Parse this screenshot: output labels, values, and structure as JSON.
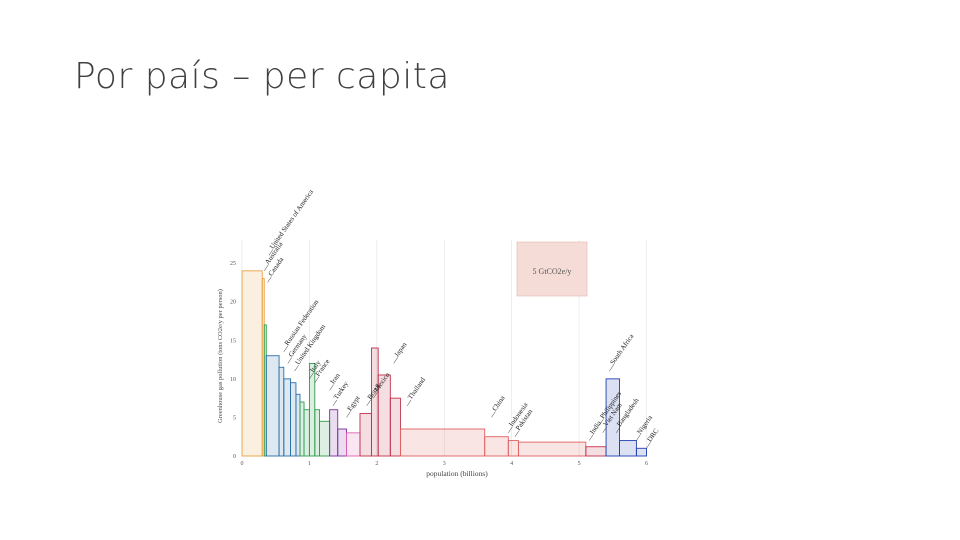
{
  "slide": {
    "title": "Por país – per capita"
  },
  "chart_data": {
    "type": "bar",
    "xlabel": "population (billions)",
    "ylabel": "Greenhouse gas pollution (tons CO2e/y per person)",
    "xlim": [
      0,
      6.2
    ],
    "ylim": [
      0,
      28
    ],
    "x_ticks": [
      "0",
      "1",
      "2",
      "3",
      "4",
      "5",
      "6"
    ],
    "y_ticks": [
      "0",
      "5",
      "10",
      "15",
      "20",
      "25"
    ],
    "legend_box": "5 GtCO2e/y",
    "grid": true,
    "countries": [
      {
        "x0": 0.0,
        "x1": 0.3,
        "value": 24.0,
        "color": "#e8a040",
        "label": ""
      },
      {
        "x0": 0.3,
        "x1": 0.33,
        "value": 23.0,
        "color": "#e8a040",
        "label": ""
      },
      {
        "x0": 0.33,
        "x1": 0.36,
        "value": 17.0,
        "color": "#2e9e4a",
        "label": ""
      },
      {
        "x0": 0.36,
        "x1": 0.55,
        "value": 13.0,
        "color": "#2a6fa8",
        "label": ""
      },
      {
        "x0": 0.55,
        "x1": 0.62,
        "value": 11.5,
        "color": "#2a6fa8",
        "label": ""
      },
      {
        "x0": 0.62,
        "x1": 0.72,
        "value": 10.0,
        "color": "#2a6fa8",
        "label": ""
      },
      {
        "x0": 0.72,
        "x1": 0.8,
        "value": 9.5,
        "color": "#2a6fa8",
        "label": ""
      },
      {
        "x0": 0.8,
        "x1": 0.86,
        "value": 8.0,
        "color": "#2a6fa8",
        "label": ""
      },
      {
        "x0": 0.86,
        "x1": 0.92,
        "value": 7.0,
        "color": "#2e9e4a",
        "label": ""
      },
      {
        "x0": 0.92,
        "x1": 1.0,
        "value": 6.0,
        "color": "#2e9e4a",
        "label": ""
      },
      {
        "x0": 1.0,
        "x1": 1.08,
        "value": 12.0,
        "color": "#2e9e4a",
        "label": ""
      },
      {
        "x0": 1.08,
        "x1": 1.15,
        "value": 6.0,
        "color": "#2e9e4a",
        "label": ""
      },
      {
        "x0": 1.15,
        "x1": 1.3,
        "value": 4.5,
        "color": "#2e9e4a",
        "label": ""
      },
      {
        "x0": 1.3,
        "x1": 1.42,
        "value": 6.0,
        "color": "#7a2e9e",
        "label": ""
      },
      {
        "x0": 1.42,
        "x1": 1.55,
        "value": 3.5,
        "color": "#7a2e9e",
        "label": ""
      },
      {
        "x0": 1.55,
        "x1": 1.75,
        "value": 3.0,
        "color": "#e060b0",
        "label": ""
      },
      {
        "x0": 1.75,
        "x1": 1.92,
        "value": 5.5,
        "color": "#c0304a",
        "label": ""
      },
      {
        "x0": 1.92,
        "x1": 2.02,
        "value": 14.0,
        "color": "#c0304a",
        "label": ""
      },
      {
        "x0": 2.02,
        "x1": 2.2,
        "value": 10.5,
        "color": "#c0304a",
        "label": ""
      },
      {
        "x0": 2.2,
        "x1": 2.35,
        "value": 7.5,
        "color": "#c0304a",
        "label": ""
      },
      {
        "x0": 2.35,
        "x1": 3.6,
        "value": 3.5,
        "color": "#e06060",
        "label": ""
      },
      {
        "x0": 3.6,
        "x1": 3.95,
        "value": 2.5,
        "color": "#e06060",
        "label": ""
      },
      {
        "x0": 3.95,
        "x1": 4.1,
        "value": 2.0,
        "color": "#e06060",
        "label": ""
      },
      {
        "x0": 4.1,
        "x1": 5.1,
        "value": 1.8,
        "color": "#e06060",
        "label": ""
      },
      {
        "x0": 5.1,
        "x1": 5.4,
        "value": 1.2,
        "color": "#c0304a",
        "label": ""
      },
      {
        "x0": 5.4,
        "x1": 5.6,
        "value": 10.0,
        "color": "#2040b0",
        "label": ""
      },
      {
        "x0": 5.6,
        "x1": 5.85,
        "value": 2.0,
        "color": "#2040b0",
        "label": ""
      },
      {
        "x0": 5.85,
        "x1": 6.0,
        "value": 1.0,
        "color": "#2040b0",
        "label": ""
      }
    ],
    "annotations": [
      {
        "text": "Australia",
        "x": 0.33,
        "y": 24.0
      },
      {
        "text": "United States of America",
        "x": 0.4,
        "y": 26.0
      },
      {
        "text": "Canada",
        "x": 0.38,
        "y": 22.5
      },
      {
        "text": "Russian Federation",
        "x": 0.62,
        "y": 13.5
      },
      {
        "text": "Germany",
        "x": 0.68,
        "y": 12.0
      },
      {
        "text": "United Kingdom",
        "x": 0.78,
        "y": 11.0
      },
      {
        "text": "Italy",
        "x": 1.0,
        "y": 10.0
      },
      {
        "text": "France",
        "x": 1.08,
        "y": 9.5
      },
      {
        "text": "Iran",
        "x": 1.3,
        "y": 8.5
      },
      {
        "text": "Turkey",
        "x": 1.35,
        "y": 6.5
      },
      {
        "text": "Egypt",
        "x": 1.55,
        "y": 5.0
      },
      {
        "text": "Brazil",
        "x": 1.85,
        "y": 6.5
      },
      {
        "text": "Mexico",
        "x": 1.95,
        "y": 7.5
      },
      {
        "text": "Japan",
        "x": 2.25,
        "y": 12.0
      },
      {
        "text": "Thailand",
        "x": 2.45,
        "y": 6.5
      },
      {
        "text": "China",
        "x": 3.7,
        "y": 5.0
      },
      {
        "text": "Indonesia",
        "x": 3.95,
        "y": 3.0
      },
      {
        "text": "Pakistan",
        "x": 4.05,
        "y": 2.5
      },
      {
        "text": "South Africa",
        "x": 5.45,
        "y": 11.0
      },
      {
        "text": "India",
        "x": 5.15,
        "y": 2.0
      },
      {
        "text": "Philippines",
        "x": 5.3,
        "y": 4.0
      },
      {
        "text": "Viet Nam",
        "x": 5.35,
        "y": 3.0
      },
      {
        "text": "Bangladesh",
        "x": 5.55,
        "y": 3.0
      },
      {
        "text": "Nigeria",
        "x": 5.85,
        "y": 2.0
      },
      {
        "text": "DRC",
        "x": 6.0,
        "y": 1.0
      }
    ]
  }
}
